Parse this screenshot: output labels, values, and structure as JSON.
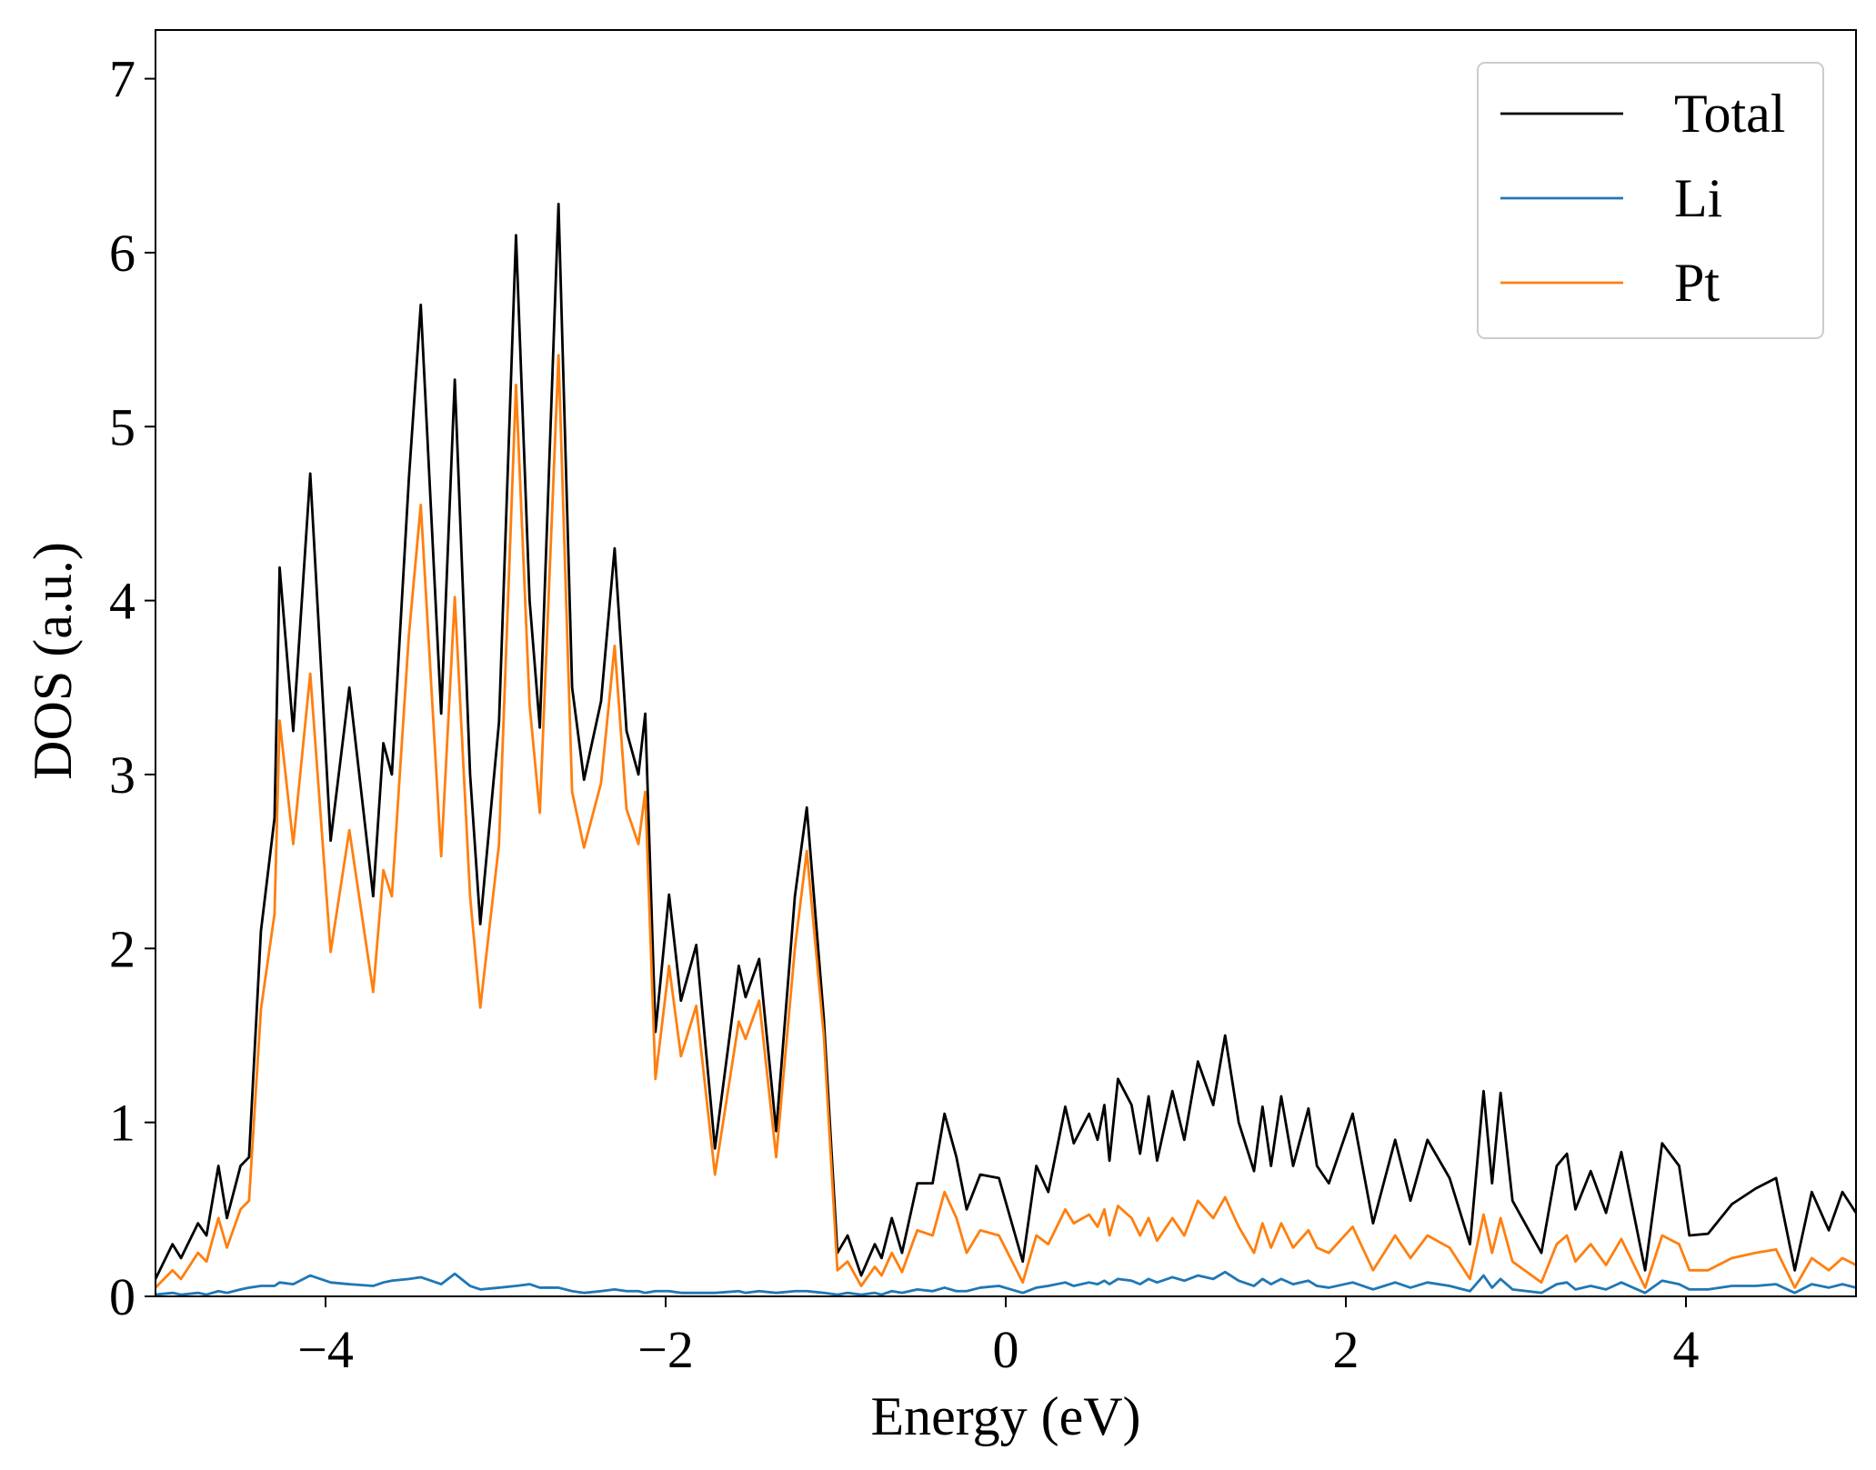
{
  "chart_data": {
    "type": "line",
    "xlabel": "Energy (eV)",
    "ylabel": "DOS (a.u.)",
    "xlim": [
      -5,
      5
    ],
    "ylim": [
      0,
      7.28
    ],
    "xticks": [
      {
        "value": -4,
        "label": "−4"
      },
      {
        "value": -2,
        "label": "−2"
      },
      0,
      2,
      4
    ],
    "yticks": [
      0,
      1,
      2,
      3,
      4,
      5,
      6,
      7
    ],
    "legend": "upper right",
    "grid": false,
    "x": [
      -5,
      -4.9,
      -4.85,
      -4.75,
      -4.7,
      -4.63,
      -4.58,
      -4.5,
      -4.45,
      -4.38,
      -4.3,
      -4.27,
      -4.19,
      -4.09,
      -3.97,
      -3.86,
      -3.72,
      -3.66,
      -3.61,
      -3.51,
      -3.44,
      -3.32,
      -3.24,
      -3.15,
      -3.09,
      -2.98,
      -2.88,
      -2.8,
      -2.74,
      -2.63,
      -2.55,
      -2.48,
      -2.38,
      -2.3,
      -2.23,
      -2.16,
      -2.12,
      -2.06,
      -1.98,
      -1.91,
      -1.82,
      -1.71,
      -1.57,
      -1.53,
      -1.45,
      -1.35,
      -1.24,
      -1.17,
      -1.07,
      -0.99,
      -0.93,
      -0.85,
      -0.77,
      -0.73,
      -0.67,
      -0.61,
      -0.52,
      -0.43,
      -0.36,
      -0.29,
      -0.23,
      -0.15,
      -0.04,
      0.1,
      0.18,
      0.25,
      0.35,
      0.4,
      0.49,
      0.54,
      0.58,
      0.61,
      0.66,
      0.74,
      0.79,
      0.84,
      0.89,
      0.98,
      1.05,
      1.13,
      1.22,
      1.29,
      1.37,
      1.46,
      1.51,
      1.56,
      1.62,
      1.69,
      1.78,
      1.83,
      1.9,
      2.04,
      2.16,
      2.29,
      2.38,
      2.48,
      2.61,
      2.73,
      2.81,
      2.86,
      2.91,
      2.98,
      3.15,
      3.24,
      3.3,
      3.35,
      3.44,
      3.53,
      3.62,
      3.76,
      3.86,
      3.96,
      4.02,
      4.13,
      4.27,
      4.41,
      4.53,
      4.64,
      4.74,
      4.84,
      4.92,
      5.0
    ],
    "series": [
      {
        "name": "Total",
        "color": "#000000",
        "values": [
          0.1,
          0.3,
          0.22,
          0.42,
          0.35,
          0.75,
          0.45,
          0.75,
          0.8,
          2.1,
          2.75,
          4.19,
          3.25,
          4.73,
          2.62,
          3.5,
          2.3,
          3.18,
          3.0,
          4.7,
          5.7,
          3.35,
          5.27,
          3.0,
          2.14,
          3.3,
          6.1,
          4.0,
          3.27,
          6.28,
          3.5,
          2.97,
          3.42,
          4.3,
          3.25,
          3.0,
          3.35,
          1.52,
          2.31,
          1.7,
          2.02,
          0.85,
          1.9,
          1.72,
          1.94,
          0.95,
          2.3,
          2.81,
          1.6,
          0.25,
          0.35,
          0.12,
          0.3,
          0.22,
          0.45,
          0.25,
          0.65,
          0.65,
          1.05,
          0.8,
          0.5,
          0.7,
          0.68,
          0.2,
          0.75,
          0.6,
          1.09,
          0.88,
          1.05,
          0.9,
          1.1,
          0.78,
          1.25,
          1.1,
          0.82,
          1.15,
          0.78,
          1.18,
          0.9,
          1.35,
          1.1,
          1.5,
          1.0,
          0.72,
          1.09,
          0.75,
          1.15,
          0.75,
          1.08,
          0.75,
          0.65,
          1.05,
          0.42,
          0.9,
          0.55,
          0.9,
          0.68,
          0.3,
          1.18,
          0.65,
          1.17,
          0.55,
          0.25,
          0.75,
          0.82,
          0.5,
          0.72,
          0.48,
          0.83,
          0.15,
          0.88,
          0.75,
          0.35,
          0.36,
          0.53,
          0.62,
          0.68,
          0.15,
          0.6,
          0.38,
          0.6,
          0.48
        ]
      },
      {
        "name": "Li",
        "color": "#1f77b4",
        "values": [
          0.01,
          0.02,
          0.01,
          0.02,
          0.01,
          0.03,
          0.02,
          0.04,
          0.05,
          0.06,
          0.06,
          0.08,
          0.07,
          0.12,
          0.08,
          0.07,
          0.06,
          0.08,
          0.09,
          0.1,
          0.11,
          0.07,
          0.13,
          0.06,
          0.04,
          0.05,
          0.06,
          0.07,
          0.05,
          0.05,
          0.03,
          0.02,
          0.03,
          0.04,
          0.03,
          0.03,
          0.02,
          0.03,
          0.03,
          0.02,
          0.02,
          0.02,
          0.03,
          0.02,
          0.03,
          0.02,
          0.03,
          0.03,
          0.02,
          0.01,
          0.02,
          0.01,
          0.02,
          0.01,
          0.03,
          0.02,
          0.04,
          0.03,
          0.05,
          0.03,
          0.03,
          0.05,
          0.06,
          0.02,
          0.05,
          0.06,
          0.08,
          0.06,
          0.08,
          0.07,
          0.09,
          0.07,
          0.1,
          0.09,
          0.07,
          0.1,
          0.08,
          0.11,
          0.09,
          0.12,
          0.1,
          0.14,
          0.09,
          0.06,
          0.1,
          0.07,
          0.1,
          0.07,
          0.09,
          0.06,
          0.05,
          0.08,
          0.04,
          0.08,
          0.05,
          0.08,
          0.06,
          0.03,
          0.12,
          0.05,
          0.1,
          0.04,
          0.02,
          0.07,
          0.08,
          0.04,
          0.06,
          0.04,
          0.08,
          0.02,
          0.09,
          0.07,
          0.04,
          0.04,
          0.06,
          0.06,
          0.07,
          0.02,
          0.07,
          0.05,
          0.07,
          0.05
        ]
      },
      {
        "name": "Pt",
        "color": "#ff7f0e",
        "values": [
          0.05,
          0.15,
          0.1,
          0.25,
          0.2,
          0.45,
          0.28,
          0.5,
          0.55,
          1.65,
          2.2,
          3.31,
          2.6,
          3.58,
          1.98,
          2.68,
          1.75,
          2.45,
          2.3,
          3.8,
          4.55,
          2.53,
          4.02,
          2.3,
          1.66,
          2.6,
          5.24,
          3.4,
          2.78,
          5.41,
          2.9,
          2.58,
          2.95,
          3.74,
          2.8,
          2.6,
          2.9,
          1.25,
          1.9,
          1.38,
          1.67,
          0.7,
          1.58,
          1.48,
          1.7,
          0.8,
          2.0,
          2.56,
          1.5,
          0.15,
          0.2,
          0.06,
          0.17,
          0.12,
          0.25,
          0.14,
          0.38,
          0.35,
          0.6,
          0.45,
          0.25,
          0.38,
          0.35,
          0.08,
          0.35,
          0.3,
          0.5,
          0.42,
          0.47,
          0.4,
          0.5,
          0.35,
          0.52,
          0.45,
          0.35,
          0.45,
          0.32,
          0.45,
          0.35,
          0.55,
          0.45,
          0.57,
          0.4,
          0.25,
          0.42,
          0.28,
          0.42,
          0.28,
          0.38,
          0.28,
          0.25,
          0.4,
          0.15,
          0.35,
          0.22,
          0.35,
          0.28,
          0.1,
          0.47,
          0.25,
          0.45,
          0.2,
          0.08,
          0.3,
          0.35,
          0.2,
          0.3,
          0.18,
          0.33,
          0.05,
          0.35,
          0.3,
          0.15,
          0.15,
          0.22,
          0.25,
          0.27,
          0.05,
          0.22,
          0.15,
          0.22,
          0.18
        ]
      }
    ]
  }
}
